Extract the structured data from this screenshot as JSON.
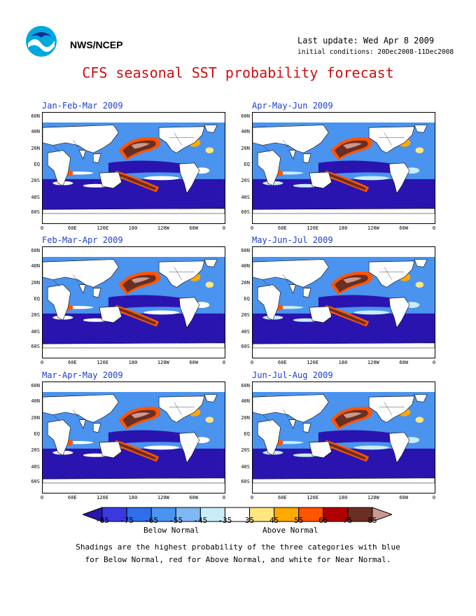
{
  "header": {
    "agency": "NWS/NCEP",
    "last_update": "Last update: Wed Apr 8 2009",
    "initial_conditions": "initial conditions: 20Dec2008-11Dec2008",
    "title": "CFS seasonal SST probability forecast"
  },
  "axes": {
    "lat_ticks": [
      "60N",
      "40N",
      "20N",
      "EQ",
      "20S",
      "40S",
      "60S"
    ],
    "lon_ticks": [
      "0",
      "60E",
      "120E",
      "180",
      "120W",
      "60W",
      "0"
    ]
  },
  "panels": [
    {
      "title": "Jan-Feb-Mar 2009"
    },
    {
      "title": "Apr-May-Jun 2009"
    },
    {
      "title": "Feb-Mar-Apr 2009"
    },
    {
      "title": "May-Jun-Jul 2009"
    },
    {
      "title": "Mar-Apr-May 2009"
    },
    {
      "title": "Jun-Jul-Aug 2009"
    }
  ],
  "legend": {
    "labels": [
      "-85",
      "-75",
      "-65",
      "-55",
      "-45",
      "-35",
      "35",
      "45",
      "55",
      "65",
      "75",
      "85"
    ],
    "colors": [
      "#2a14b0",
      "#3a3ae0",
      "#2f6ee8",
      "#4a93ee",
      "#7fb8f2",
      "#c8ecfa",
      "#ffffff",
      "#ffe680",
      "#ffaa00",
      "#ff5500",
      "#b00000",
      "#6b2e22",
      "#c89a90"
    ],
    "below": "Below Normal",
    "above": "Above Normal"
  },
  "footnote": {
    "line1": "Shadings are the highest probability of the three categories with blue",
    "line2": "for Below Normal, red for Above Normal, and white for Near Normal."
  }
}
